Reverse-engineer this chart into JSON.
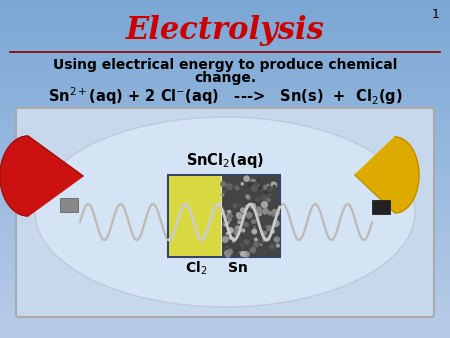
{
  "title": "Electrolysis",
  "title_color": "#CC0000",
  "title_fontsize": 22,
  "subtitle_line1": "Using electrical energy to produce chemical",
  "subtitle_line2": "change.",
  "subtitle_fontsize": 10,
  "equation": "Sn$^{2+}$(aq) + 2 Cl$^{-}$(aq)   --->   Sn(s)  +  Cl$_2$(g)",
  "equation_fontsize": 10.5,
  "slide_number": "1",
  "bg_color_top": "#7BA7D4",
  "bg_color_bottom": "#A8C0E0",
  "line_color": "#880000",
  "text_color": "#000000",
  "title_shadow_color": "#880000",
  "photo_bg": "#C8D8EC",
  "photo_border": "#AAAAAA",
  "red_cap_color": "#CC1111",
  "yellow_cap_color": "#DDAA00",
  "wire_color": "#BBBBBB",
  "wire_shadow_color": "#999999",
  "center_box_border": "#334466",
  "cl2_color": "#E8E840",
  "sn_color": "#555555",
  "snCl2_label": "SnCl$_2$(aq)",
  "cl2_label": "Cl$_2$",
  "sn_label": "Sn",
  "label_fontsize": 9,
  "coil_amplitude": 0.038,
  "coil_freq_half_cycles": 20
}
